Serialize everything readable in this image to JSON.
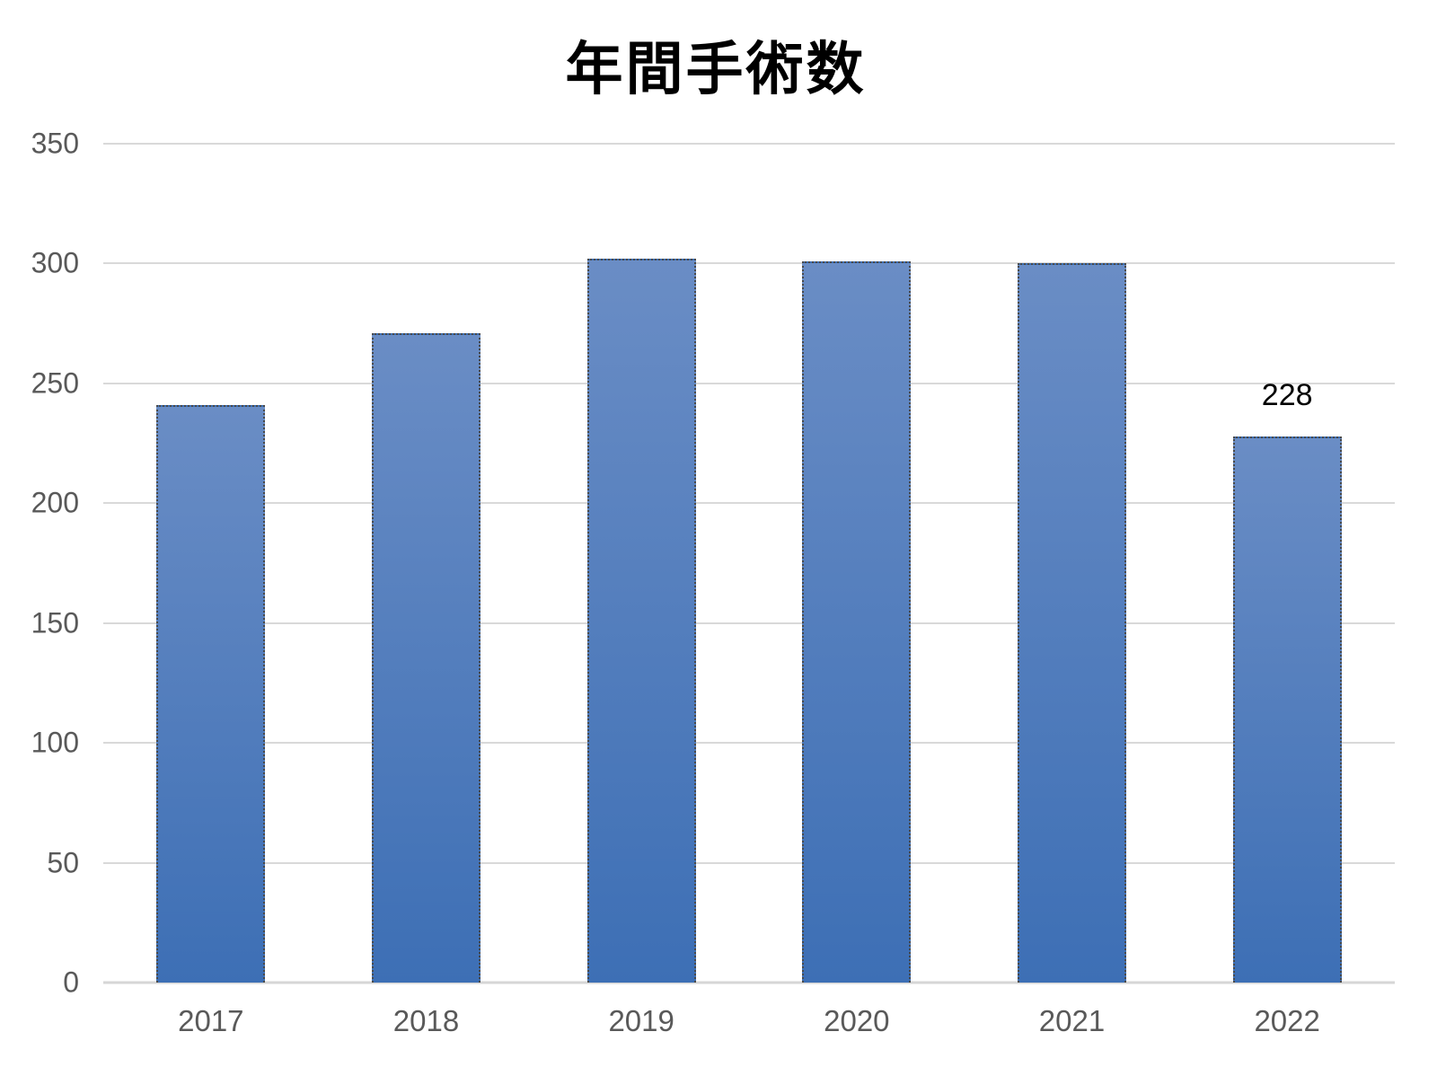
{
  "chart_data": {
    "type": "bar",
    "title": "年間手術数",
    "categories": [
      "2017",
      "2018",
      "2019",
      "2020",
      "2021",
      "2022"
    ],
    "values": [
      241,
      271,
      302,
      301,
      300,
      228
    ],
    "shown_value_labels": [
      null,
      null,
      null,
      null,
      null,
      "228"
    ],
    "xlabel": "",
    "ylabel": "",
    "ylim": [
      0,
      350
    ],
    "yticks": [
      0,
      50,
      100,
      150,
      200,
      250,
      300,
      350
    ],
    "grid": true,
    "gridline_orientation": "horizontal",
    "legend": false
  },
  "colors": {
    "background": "#ffffff",
    "bar_top": "#6a8dc5",
    "bar_bottom": "#3d6fb5",
    "bar_border": "#4a4a4a",
    "gridline": "#d9d9d9",
    "axis_line": "#d6d6d6",
    "tick_label": "#595959",
    "title_color": "#000000",
    "data_label_color": "#000000"
  }
}
